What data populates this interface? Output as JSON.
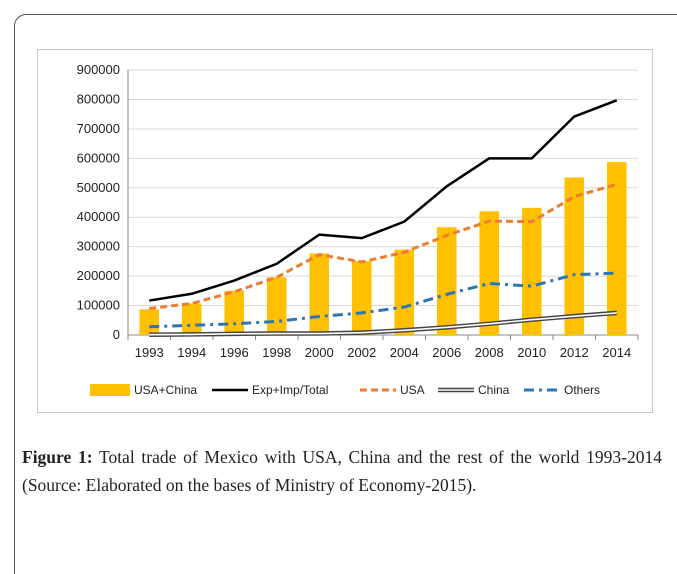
{
  "chart_data": {
    "type": "bar",
    "categories": [
      "1993",
      "1994",
      "1996",
      "1998",
      "2000",
      "2002",
      "2004",
      "2006",
      "2008",
      "2010",
      "2012",
      "2014"
    ],
    "ylim": [
      0,
      900000
    ],
    "yticks": [
      0,
      100000,
      200000,
      300000,
      400000,
      500000,
      600000,
      700000,
      800000,
      900000
    ],
    "ytick_labels": [
      "0",
      "100000",
      "200000",
      "300000",
      "400000",
      "500000",
      "600000",
      "700000",
      "800000",
      "900000"
    ],
    "grid": true,
    "legend_position": "bottom",
    "bar_series": {
      "name": "USA+China",
      "color": "#FFC000",
      "values": [
        87000,
        107000,
        150000,
        196000,
        277000,
        251000,
        290000,
        366000,
        420000,
        432000,
        535000,
        587000
      ]
    },
    "series": [
      {
        "name": "Exp+Imp/Total",
        "color": "#000000",
        "style": "solid",
        "values": [
          117000,
          140000,
          185000,
          242000,
          341000,
          329000,
          385000,
          505000,
          600000,
          600000,
          742000,
          797000
        ]
      },
      {
        "name": "USA",
        "color": "#ED7D31",
        "style": "dashed",
        "values": [
          90000,
          107000,
          147000,
          196000,
          273000,
          248000,
          281000,
          338000,
          387000,
          385000,
          470000,
          512000
        ]
      },
      {
        "name": "China",
        "color": "#444444",
        "style": "double",
        "values": [
          1000,
          2000,
          4000,
          5000,
          5000,
          8000,
          16000,
          26000,
          38000,
          52000,
          64000,
          75000
        ]
      },
      {
        "name": "Others",
        "color": "#2E75B6",
        "style": "dashdot",
        "values": [
          28000,
          33000,
          38000,
          46000,
          63000,
          75000,
          95000,
          138000,
          175000,
          166000,
          205000,
          210000
        ]
      }
    ]
  },
  "caption": {
    "label": "Figure 1:",
    "text": " Total trade of Mexico with USA, China and the rest of the world 1993-2014 (Source: Elaborated on the bases of Ministry of Economy-2015)."
  }
}
